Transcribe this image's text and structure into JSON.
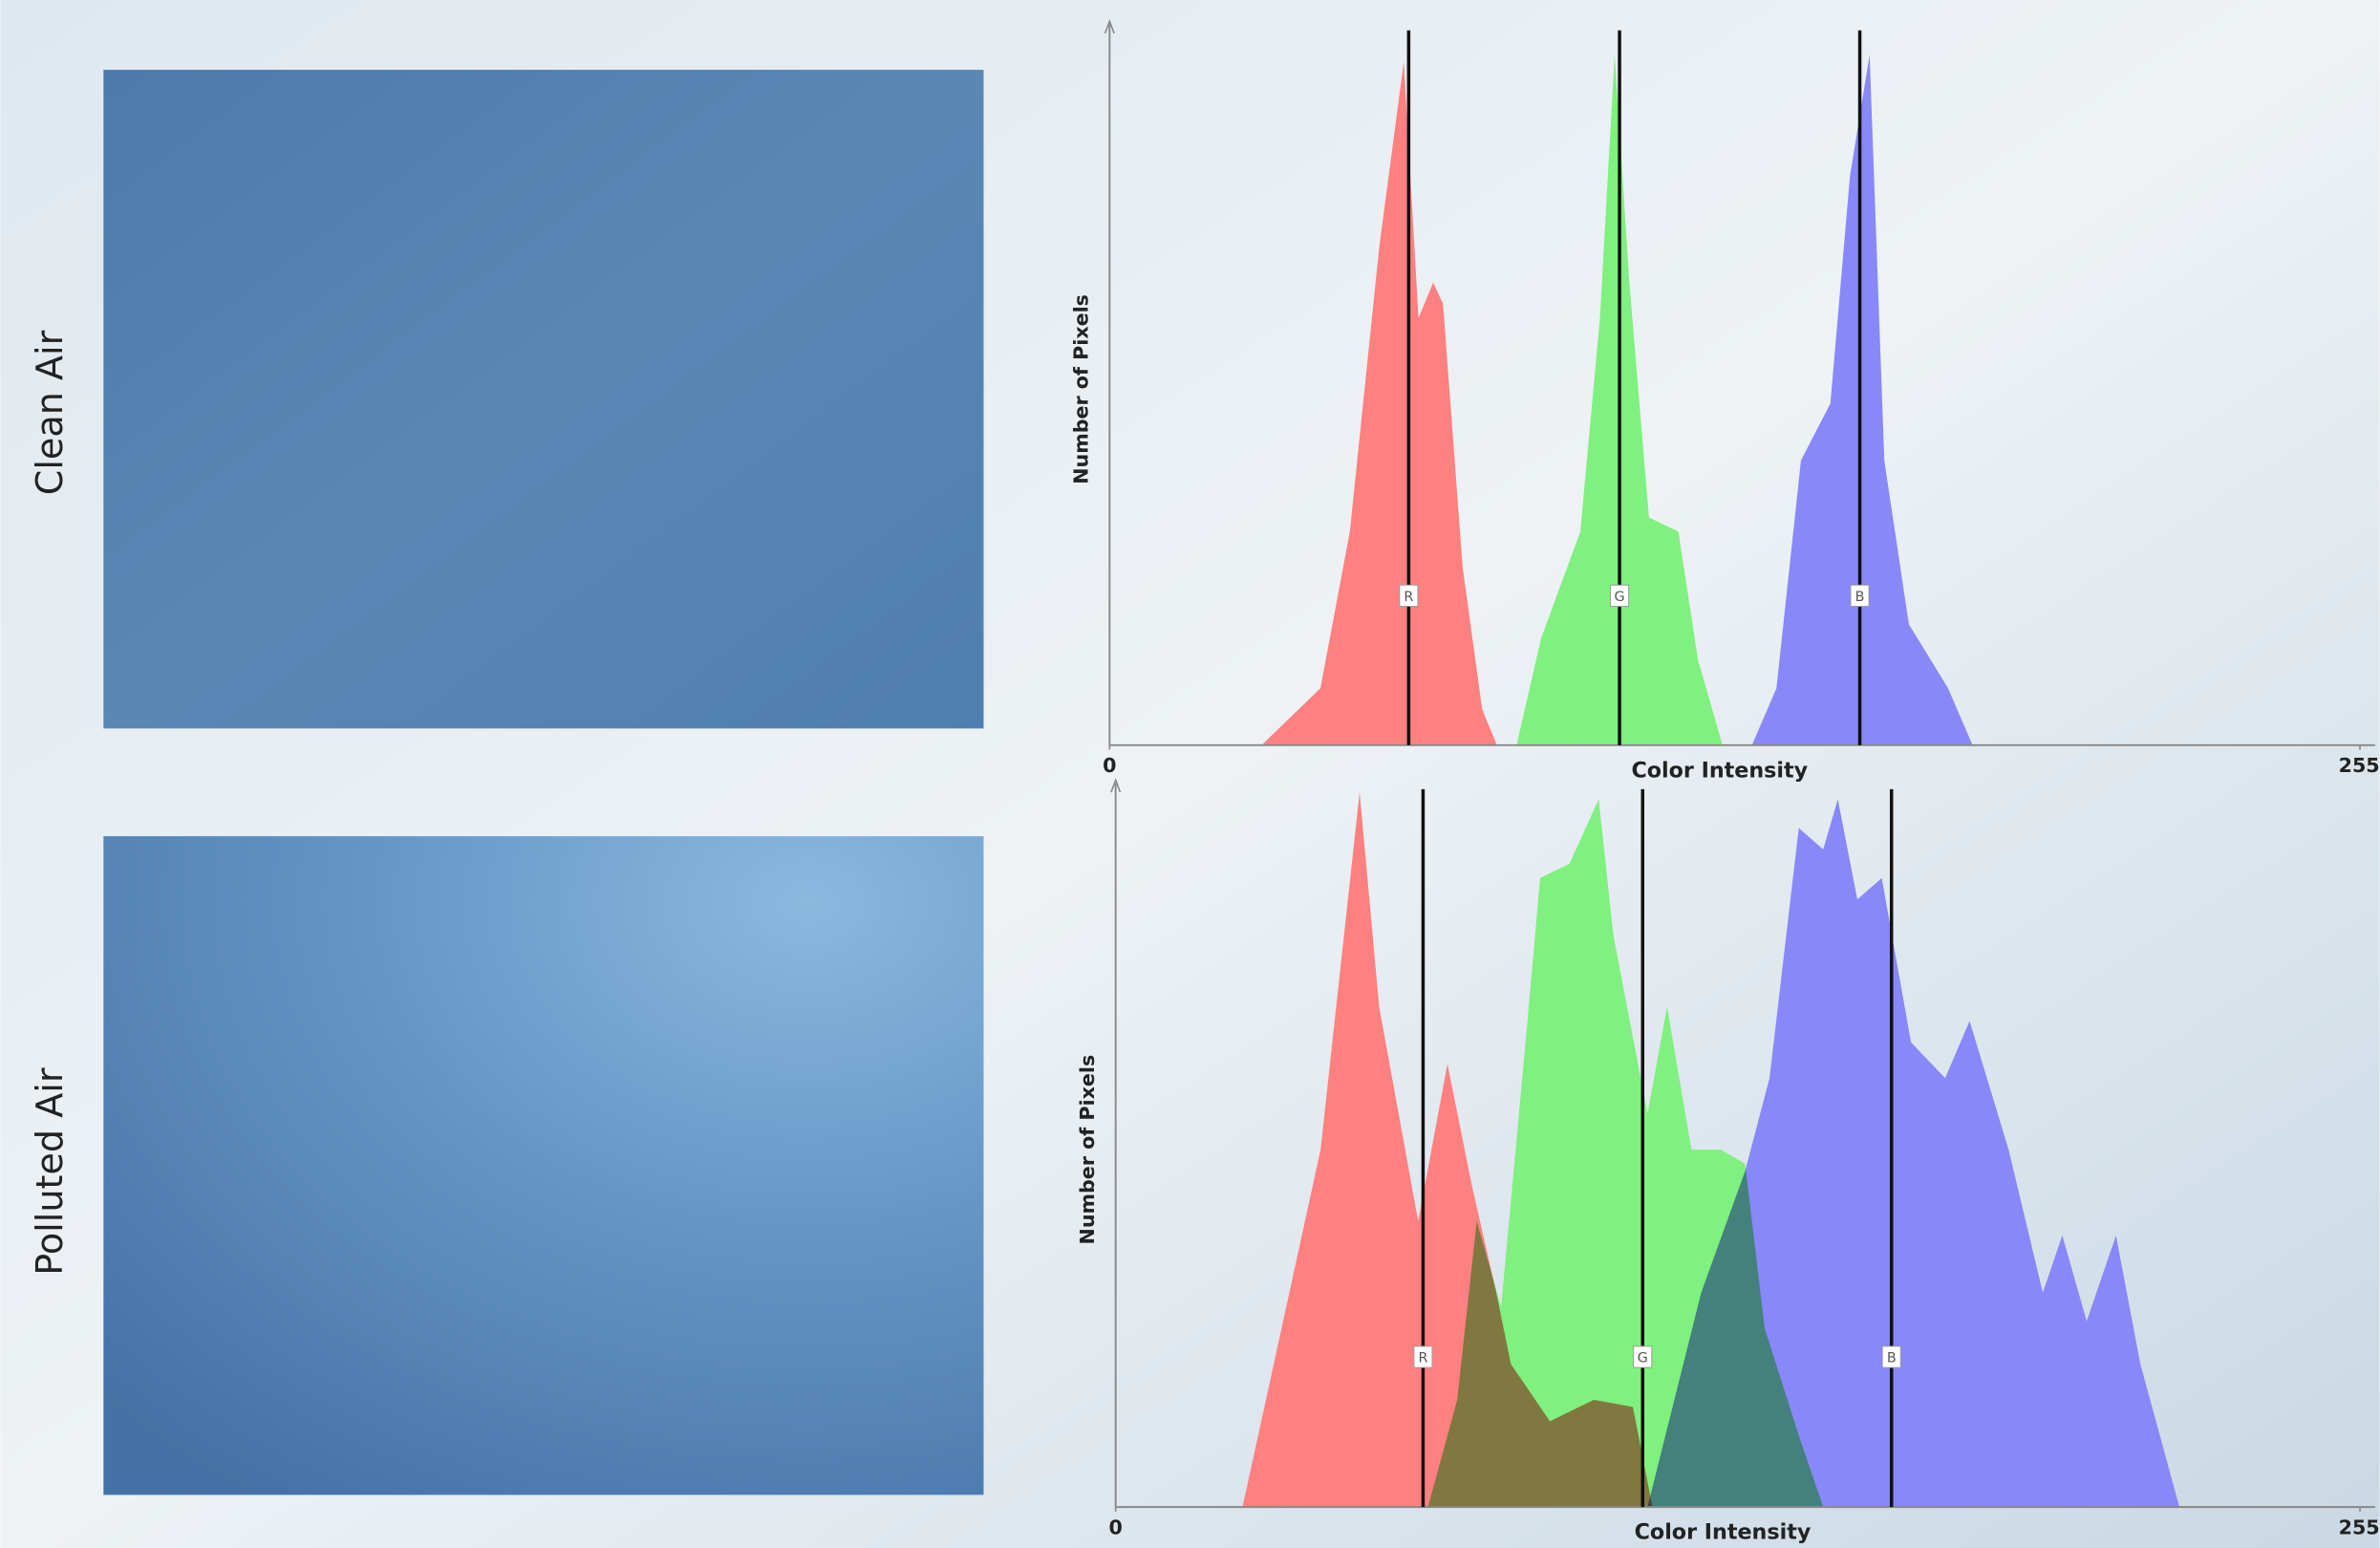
{
  "photo_labels": [
    "Clean Air",
    "Polluted Air"
  ],
  "chart_data": [
    {
      "type": "area",
      "x_label": "Color Intensity",
      "y_label": "Number of Pixels",
      "xlim": [
        0,
        255
      ],
      "xticks": [
        0,
        255
      ],
      "ylim": [
        0,
        100
      ],
      "series": [
        {
          "name": "R",
          "color": "#ff8080",
          "mean": 61,
          "x": [
            31,
            43,
            49,
            55,
            60,
            63,
            66,
            68,
            72,
            76,
            79
          ],
          "values": [
            0,
            8,
            30,
            70,
            96,
            60,
            65,
            62,
            25,
            5,
            0
          ]
        },
        {
          "name": "G",
          "color": "#80f080",
          "mean": 104,
          "x": [
            83,
            88,
            96,
            100,
            103,
            106,
            110,
            116,
            120,
            125
          ],
          "values": [
            0,
            15,
            30,
            60,
            97,
            65,
            32,
            30,
            12,
            0
          ]
        },
        {
          "name": "B",
          "color": "#8888f8",
          "mean": 153,
          "x": [
            131,
            136,
            141,
            147,
            151,
            155,
            158,
            163,
            171,
            176
          ],
          "values": [
            0,
            8,
            40,
            48,
            80,
            97,
            40,
            17,
            8,
            0
          ]
        }
      ]
    },
    {
      "type": "area",
      "x_label": "Color Intensity",
      "y_label": "Number of Pixels",
      "xlim": [
        0,
        255
      ],
      "xticks": [
        0,
        255
      ],
      "ylim": [
        0,
        100
      ],
      "series": [
        {
          "name": "R",
          "color": "#ff8080",
          "mean": 63,
          "x": [
            26,
            34,
            42,
            50,
            54,
            62,
            68,
            73,
            78,
            81,
            89,
            98,
            106,
            110
          ],
          "values": [
            0,
            25,
            50,
            100,
            70,
            40,
            62,
            45,
            30,
            20,
            12,
            15,
            14,
            0
          ]
        },
        {
          "name": "G",
          "color": "#80f080",
          "mean": 108,
          "x": [
            64,
            70,
            74,
            79,
            84,
            87,
            93,
            99,
            102,
            109,
            113,
            118,
            124,
            129,
            133,
            140,
            145
          ],
          "values": [
            0,
            15,
            40,
            28,
            65,
            88,
            90,
            99,
            80,
            55,
            70,
            50,
            50,
            48,
            25,
            10,
            0
          ]
        },
        {
          "name": "B",
          "color": "#8888f8",
          "mean": 159,
          "x": [
            109,
            120,
            129,
            134,
            140,
            145,
            148,
            152,
            157,
            163,
            170,
            175,
            183,
            190,
            194,
            199,
            205,
            210,
            218
          ],
          "values": [
            0,
            30,
            47,
            60,
            95,
            92,
            99,
            85,
            88,
            65,
            60,
            68,
            50,
            30,
            38,
            26,
            38,
            20,
            0
          ]
        }
      ]
    }
  ]
}
